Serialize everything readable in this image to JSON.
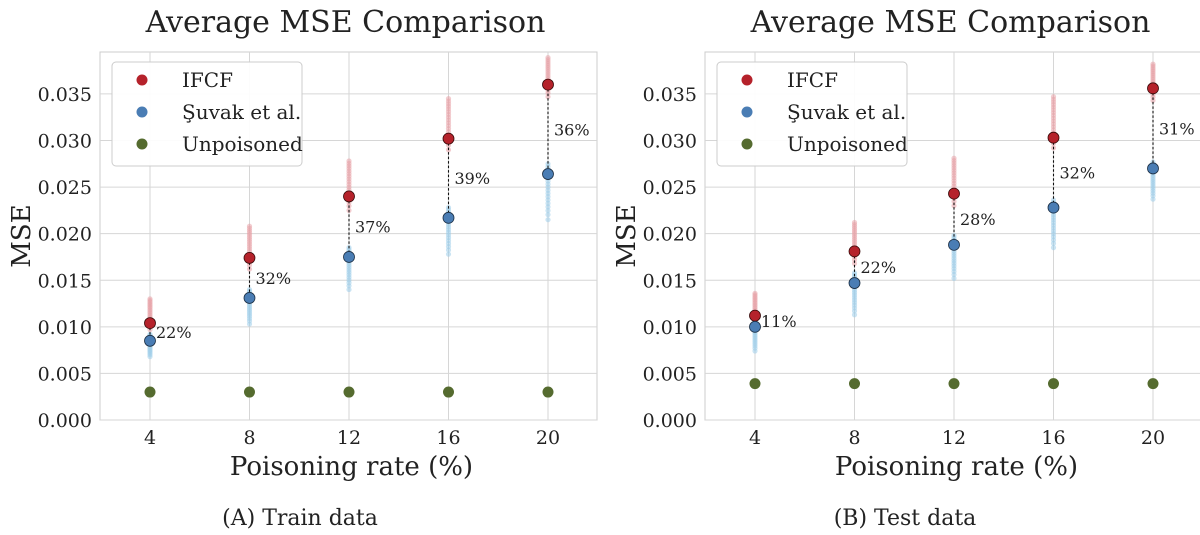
{
  "chart_data": [
    {
      "type": "scatter",
      "title": "Average MSE Comparison",
      "xlabel": "Poisoning rate (%)",
      "ylabel": "MSE",
      "categories": [
        4,
        8,
        12,
        16,
        20
      ],
      "ylim": [
        0.0,
        0.0395
      ],
      "yticks": [
        "0.000",
        "0.005",
        "0.010",
        "0.015",
        "0.020",
        "0.025",
        "0.030",
        "0.035"
      ],
      "grid": true,
      "legend_position": "top-left",
      "series": [
        {
          "name": "IFCF",
          "color": "#b5222b",
          "light_color": "#e8a3a7",
          "values": [
            0.0104,
            0.0174,
            0.024,
            0.0302,
            0.036
          ],
          "spread": [
            [
              0.0097,
              0.013
            ],
            [
              0.0162,
              0.0208
            ],
            [
              0.0225,
              0.0278
            ],
            [
              0.029,
              0.0345
            ],
            [
              0.0347,
              0.0389
            ]
          ]
        },
        {
          "name": "Şuvak et al.",
          "color": "#4a7db4",
          "light_color": "#9fcdea",
          "values": [
            0.0085,
            0.0131,
            0.0175,
            0.0217,
            0.0264
          ],
          "spread": [
            [
              0.0068,
              0.0092
            ],
            [
              0.0103,
              0.014
            ],
            [
              0.014,
              0.0185
            ],
            [
              0.0178,
              0.0228
            ],
            [
              0.0215,
              0.0275
            ]
          ]
        },
        {
          "name": "Unpoisoned",
          "color": "#556b2f",
          "values": [
            0.003,
            0.003,
            0.003,
            0.003,
            0.003
          ]
        }
      ],
      "annotations": [
        "22%",
        "32%",
        "37%",
        "39%",
        "36%"
      ],
      "caption_tag": "(A)",
      "caption_text": "Train data"
    },
    {
      "type": "scatter",
      "title": "Average MSE Comparison",
      "xlabel": "Poisoning rate (%)",
      "ylabel": "MSE",
      "categories": [
        4,
        8,
        12,
        16,
        20
      ],
      "ylim": [
        0.0,
        0.0395
      ],
      "yticks": [
        "0.000",
        "0.005",
        "0.010",
        "0.015",
        "0.020",
        "0.025",
        "0.030",
        "0.035"
      ],
      "grid": true,
      "legend_position": "top-left",
      "series": [
        {
          "name": "IFCF",
          "color": "#b5222b",
          "light_color": "#e8a3a7",
          "values": [
            0.0112,
            0.0181,
            0.0243,
            0.0303,
            0.0356
          ],
          "spread": [
            [
              0.0102,
              0.0136
            ],
            [
              0.0168,
              0.0212
            ],
            [
              0.023,
              0.0281
            ],
            [
              0.0292,
              0.0347
            ],
            [
              0.0343,
              0.0382
            ]
          ]
        },
        {
          "name": "Şuvak et al.",
          "color": "#4a7db4",
          "light_color": "#9fcdea",
          "values": [
            0.01,
            0.0147,
            0.0188,
            0.0228,
            0.027
          ],
          "spread": [
            [
              0.0074,
              0.0108
            ],
            [
              0.0113,
              0.0158
            ],
            [
              0.0152,
              0.0198
            ],
            [
              0.0185,
              0.0236
            ],
            [
              0.0237,
              0.0277
            ]
          ]
        },
        {
          "name": "Unpoisoned",
          "color": "#556b2f",
          "values": [
            0.0039,
            0.0039,
            0.0039,
            0.0039,
            0.0039
          ]
        }
      ],
      "annotations": [
        "11%",
        "22%",
        "28%",
        "32%",
        "31%"
      ],
      "caption_tag": "(B)",
      "caption_text": "Test data"
    }
  ]
}
